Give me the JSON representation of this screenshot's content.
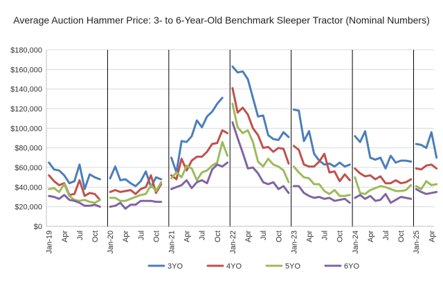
{
  "chart_data": {
    "type": "line",
    "title": "Average Auction Hammer Price: 3- to 6-Year-Old Benchmark Sleeper Tractor (Nominal Numbers)",
    "xlabel": "",
    "ylabel": "",
    "ylim": [
      0,
      180000
    ],
    "y_tick_labels": [
      "$0",
      "$20,000",
      "$40,000",
      "$60,000",
      "$80,000",
      "$100,000",
      "$120,000",
      "$140,000",
      "$160,000",
      "$180,000"
    ],
    "x_tick_labels": [
      "Jan-19",
      "Apr",
      "Jul",
      "Oct",
      "Jan-20",
      "Apr",
      "Jul",
      "Oct",
      "Jan-21",
      "Apr",
      "Jul",
      "Oct",
      "Jan-22",
      "Apr",
      "Jul",
      "Oct",
      "Jan-23",
      "Apr",
      "Jul",
      "Oct",
      "Jan-24",
      "Apr",
      "Jul",
      "Oct",
      "Jan-25",
      "Apr"
    ],
    "x_tick_months": [
      0,
      3,
      6,
      9,
      12,
      15,
      18,
      21,
      24,
      27,
      30,
      33,
      36,
      39,
      42,
      45,
      48,
      51,
      54,
      57,
      60,
      63,
      66,
      69,
      72,
      75
    ],
    "year_separators": [
      11.5,
      23.5,
      35.5,
      47.5,
      59.5,
      71.5
    ],
    "grid": "horizontal",
    "legend_position": "bottom",
    "series": [
      {
        "name": "3YO",
        "color": "#4a7ebb",
        "segments": [
          {
            "start_month": 0,
            "values": [
              65000,
              58000,
              57000,
              52000,
              44000,
              46000,
              63000,
              38000,
              53000,
              50000,
              48000
            ]
          },
          {
            "start_month": 12,
            "values": [
              49000,
              61000,
              47000,
              48000,
              44000,
              41000,
              46000,
              56000,
              40000,
              50000,
              48000
            ]
          },
          {
            "start_month": 24,
            "values": [
              70000,
              55000,
              87000,
              86000,
              92000,
              108000,
              101000,
              112000,
              117000,
              125000,
              131000
            ]
          },
          {
            "start_month": 36,
            "values": [
              163000,
              157000,
              158000,
              150000,
              131000,
              112000,
              113000,
              93000,
              89000,
              88000,
              96000,
              91000
            ]
          },
          {
            "start_month": 48,
            "values": [
              119000,
              118000,
              87000,
              97000,
              74000,
              67000,
              63000,
              64000,
              61000,
              65000,
              61000,
              63000
            ]
          },
          {
            "start_month": 60,
            "values": [
              92000,
              86000,
              97000,
              70000,
              68000,
              70000,
              59000,
              72000,
              65000,
              67000,
              67000,
              66000
            ]
          },
          {
            "start_month": 72,
            "values": [
              84000,
              83000,
              80000,
              96000,
              70000
            ]
          }
        ]
      },
      {
        "name": "4YO",
        "color": "#c0504d",
        "segments": [
          {
            "start_month": 0,
            "values": [
              52000,
              46000,
              42000,
              44000,
              32000,
              33000,
              47000,
              31000,
              34000,
              33000,
              27000
            ]
          },
          {
            "start_month": 12,
            "values": [
              35000,
              37000,
              35000,
              36000,
              37000,
              33000,
              38000,
              40000,
              52000,
              34000,
              43000
            ]
          },
          {
            "start_month": 24,
            "values": [
              52000,
              48000,
              69000,
              57000,
              67000,
              71000,
              71000,
              76000,
              84000,
              85000,
              98000,
              95000
            ]
          },
          {
            "start_month": 36,
            "values": [
              141000,
              116000,
              121000,
              114000,
              100000,
              93000,
              80000,
              81000,
              76000,
              80000,
              79000,
              64000
            ]
          },
          {
            "start_month": 48,
            "values": [
              82000,
              78000,
              63000,
              61000,
              61000,
              66000,
              74000,
              55000,
              56000,
              46000,
              53000,
              47000
            ]
          },
          {
            "start_month": 60,
            "values": [
              59000,
              54000,
              51000,
              52000,
              48000,
              51000,
              44000,
              44000,
              47000,
              44000,
              45000,
              48000
            ]
          },
          {
            "start_month": 72,
            "values": [
              59000,
              58000,
              62000,
              63000,
              59000
            ]
          }
        ]
      },
      {
        "name": "5YO",
        "color": "#9bbb59",
        "segments": [
          {
            "start_month": 0,
            "values": [
              38000,
              39000,
              35000,
              43000,
              31000,
              27000,
              26000,
              27000,
              25000,
              24000,
              27000
            ]
          },
          {
            "start_month": 12,
            "values": [
              29000,
              29000,
              26000,
              26000,
              28000,
              30000,
              32000,
              33000,
              42000,
              36000,
              45000
            ]
          },
          {
            "start_month": 24,
            "values": [
              49000,
              55000,
              50000,
              62000,
              59000,
              47000,
              55000,
              57000,
              62000,
              65000,
              86000,
              72000
            ]
          },
          {
            "start_month": 36,
            "values": [
              125000,
              101000,
              95000,
              98000,
              86000,
              66000,
              61000,
              69000,
              63000,
              61000,
              57000,
              45000
            ]
          },
          {
            "start_month": 48,
            "values": [
              61000,
              55000,
              50000,
              49000,
              43000,
              43000,
              36000,
              33000,
              37000,
              31000,
              31000,
              32000
            ]
          },
          {
            "start_month": 60,
            "values": [
              50000,
              34000,
              33000,
              37000,
              39000,
              41000,
              40000,
              38000,
              36000,
              36000,
              37000,
              42000
            ]
          },
          {
            "start_month": 72,
            "values": [
              41000,
              38000,
              46000,
              42000,
              43000
            ]
          }
        ]
      },
      {
        "name": "6YO",
        "color": "#8064a2",
        "segments": [
          {
            "start_month": 0,
            "values": [
              31000,
              30000,
              28000,
              32000,
              27000,
              26000,
              24000,
              21000,
              21000,
              22000,
              20000
            ]
          },
          {
            "start_month": 12,
            "values": [
              20000,
              21000,
              24000,
              18000,
              22000,
              22000,
              26000,
              26000,
              26000,
              25000,
              25000
            ]
          },
          {
            "start_month": 24,
            "values": [
              38000,
              40000,
              42000,
              47000,
              39000,
              45000,
              47000,
              44000,
              58000,
              63000,
              61000,
              65000
            ]
          },
          {
            "start_month": 36,
            "values": [
              106000,
              90000,
              75000,
              59000,
              60000,
              54000,
              45000,
              43000,
              45000,
              38000,
              41000,
              34000
            ]
          },
          {
            "start_month": 48,
            "values": [
              41000,
              41000,
              34000,
              31000,
              29000,
              30000,
              28000,
              29000,
              26000,
              27000,
              28000,
              24000
            ]
          },
          {
            "start_month": 60,
            "values": [
              29000,
              32000,
              28000,
              31000,
              26000,
              27000,
              33000,
              24000,
              27000,
              30000,
              29000,
              28000
            ]
          },
          {
            "start_month": 72,
            "values": [
              38000,
              35000,
              33000,
              34000,
              35000
            ]
          }
        ]
      }
    ]
  }
}
